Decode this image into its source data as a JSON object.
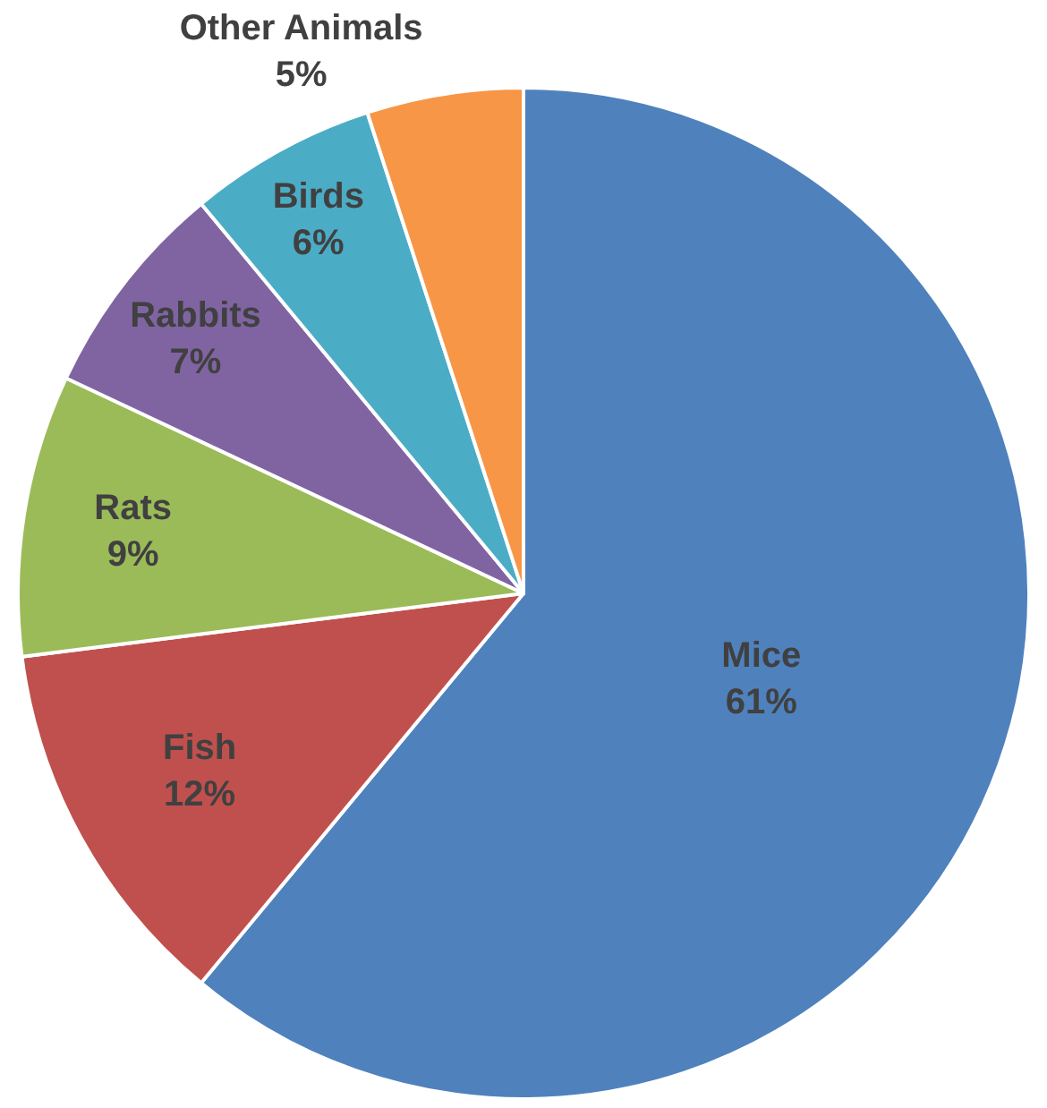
{
  "chart_data": {
    "type": "pie",
    "categories": [
      "Mice",
      "Fish",
      "Rats",
      "Rabbits",
      "Birds",
      "Other Animals"
    ],
    "values": [
      61,
      12,
      9,
      7,
      6,
      5
    ],
    "value_labels": [
      "61%",
      "12%",
      "9%",
      "7%",
      "6%",
      "5%"
    ],
    "colors": [
      "#4f81bd",
      "#c0504d",
      "#9bbb59",
      "#8064a2",
      "#4bacc6",
      "#f79646"
    ],
    "legend": false
  }
}
